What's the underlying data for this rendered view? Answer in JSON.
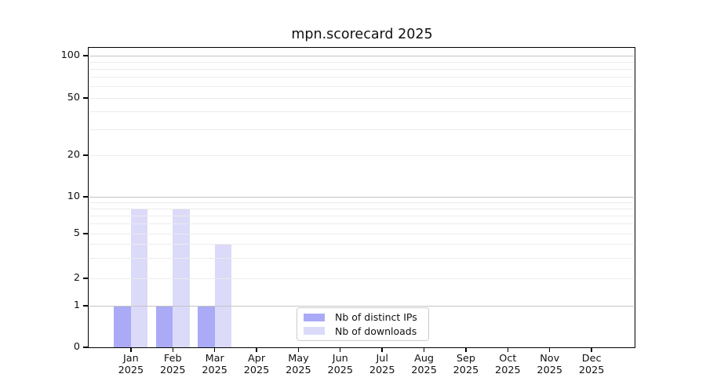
{
  "title": "mpn.scorecard 2025",
  "chart_data": {
    "type": "bar",
    "title": "mpn.scorecard 2025",
    "categories": [
      "Jan",
      "Feb",
      "Mar",
      "Apr",
      "May",
      "Jun",
      "Jul",
      "Aug",
      "Sep",
      "Oct",
      "Nov",
      "Dec"
    ],
    "category_year": "2025",
    "series": [
      {
        "name": "Nb of distinct IPs",
        "color": "#aaaaf6",
        "values": [
          1,
          1,
          1,
          0,
          0,
          0,
          0,
          0,
          0,
          0,
          0,
          0
        ]
      },
      {
        "name": "Nb of downloads",
        "color": "#dbdaf9",
        "values": [
          8,
          8,
          4,
          0,
          0,
          0,
          0,
          0,
          0,
          0,
          0,
          0
        ]
      }
    ],
    "yaxis": {
      "scale": "symlog",
      "tick_labels": [
        "0",
        "1",
        "2",
        "5",
        "10",
        "20",
        "50",
        "100"
      ],
      "tick_values": [
        0,
        1,
        2,
        5,
        10,
        20,
        50,
        100
      ],
      "minor_grid_values": [
        2,
        3,
        4,
        5,
        6,
        7,
        8,
        9,
        20,
        30,
        40,
        50,
        60,
        70,
        80,
        90
      ],
      "major_grid_values": [
        1,
        10,
        100
      ],
      "ylim": [
        0,
        110
      ]
    },
    "xaxis": {
      "label_lines": 2
    },
    "legend_position": "lower center",
    "grid": "horizontal major+minor, drawn above bars"
  },
  "colors": {
    "bar_distinct_ips": "#aaaaf6",
    "bar_downloads": "#dbdaf9",
    "major_grid": "#c4c4c4",
    "minor_grid": "#ececec",
    "axis": "#000000",
    "legend_border": "#cccccc",
    "background": "#ffffff"
  }
}
